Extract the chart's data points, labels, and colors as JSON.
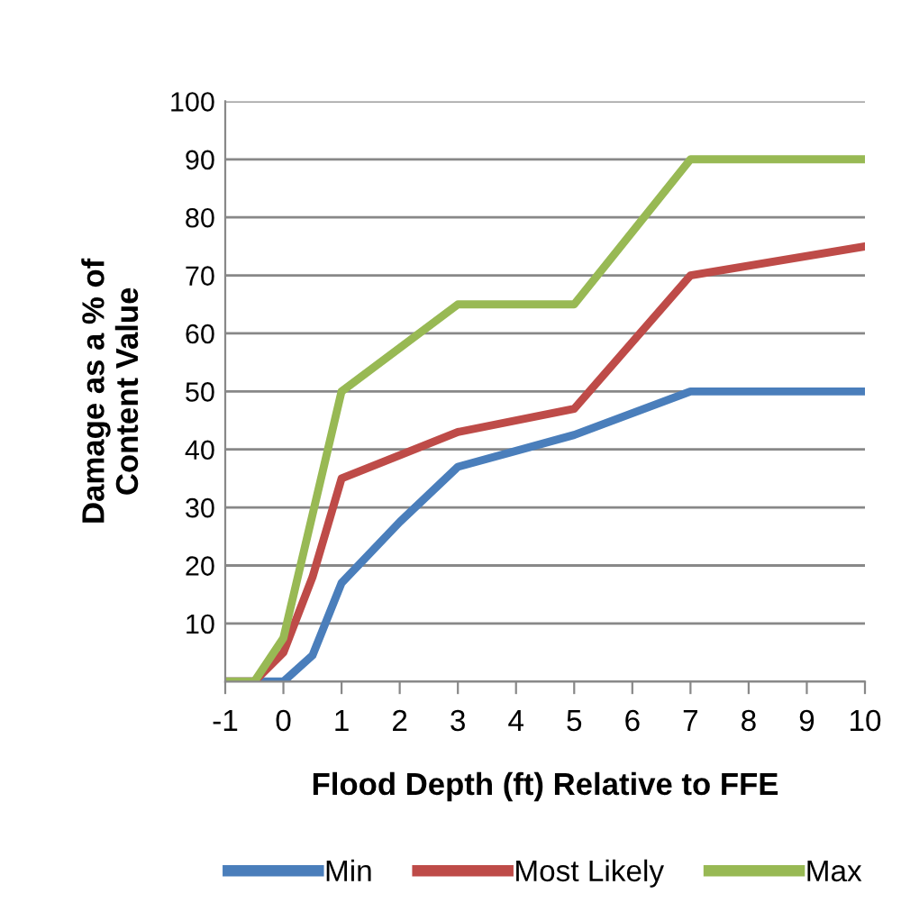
{
  "chart_data": {
    "type": "line",
    "xlabel": "Flood Depth (ft) Relative to FFE",
    "ylabel": "Damage as a % of\nContent Value",
    "xlim": [
      -1,
      10
    ],
    "xticks": [
      -1,
      0,
      1,
      2,
      3,
      4,
      5,
      6,
      7,
      8,
      9,
      10
    ],
    "ylim": [
      0,
      100
    ],
    "yticks": [
      {
        "value": 0,
        "label": null
      },
      10,
      20,
      30,
      40,
      50,
      60,
      70,
      80,
      90,
      100
    ],
    "grid": "y",
    "legend": "bottom",
    "marker": "none",
    "line_style": "solid",
    "series": [
      {
        "name": "Min",
        "color": "#4a7ebb",
        "x": [
          -1,
          -0.5,
          0,
          0.5,
          1,
          2,
          3,
          5,
          7,
          10
        ],
        "values": [
          0,
          0,
          0,
          4.5,
          17,
          27.5,
          37,
          42.5,
          50,
          50
        ]
      },
      {
        "name": "Most Likely",
        "color": "#be4b48",
        "x": [
          -1,
          -0.5,
          0,
          0.5,
          1,
          3,
          5,
          7,
          10
        ],
        "values": [
          0,
          0,
          5,
          18,
          35,
          43,
          47,
          70,
          75
        ]
      },
      {
        "name": "Max",
        "color": "#98b954",
        "x": [
          -1,
          -0.5,
          0,
          1,
          3,
          5,
          7,
          10
        ],
        "values": [
          0,
          0,
          7.5,
          50,
          65,
          65,
          90,
          90
        ]
      }
    ]
  }
}
